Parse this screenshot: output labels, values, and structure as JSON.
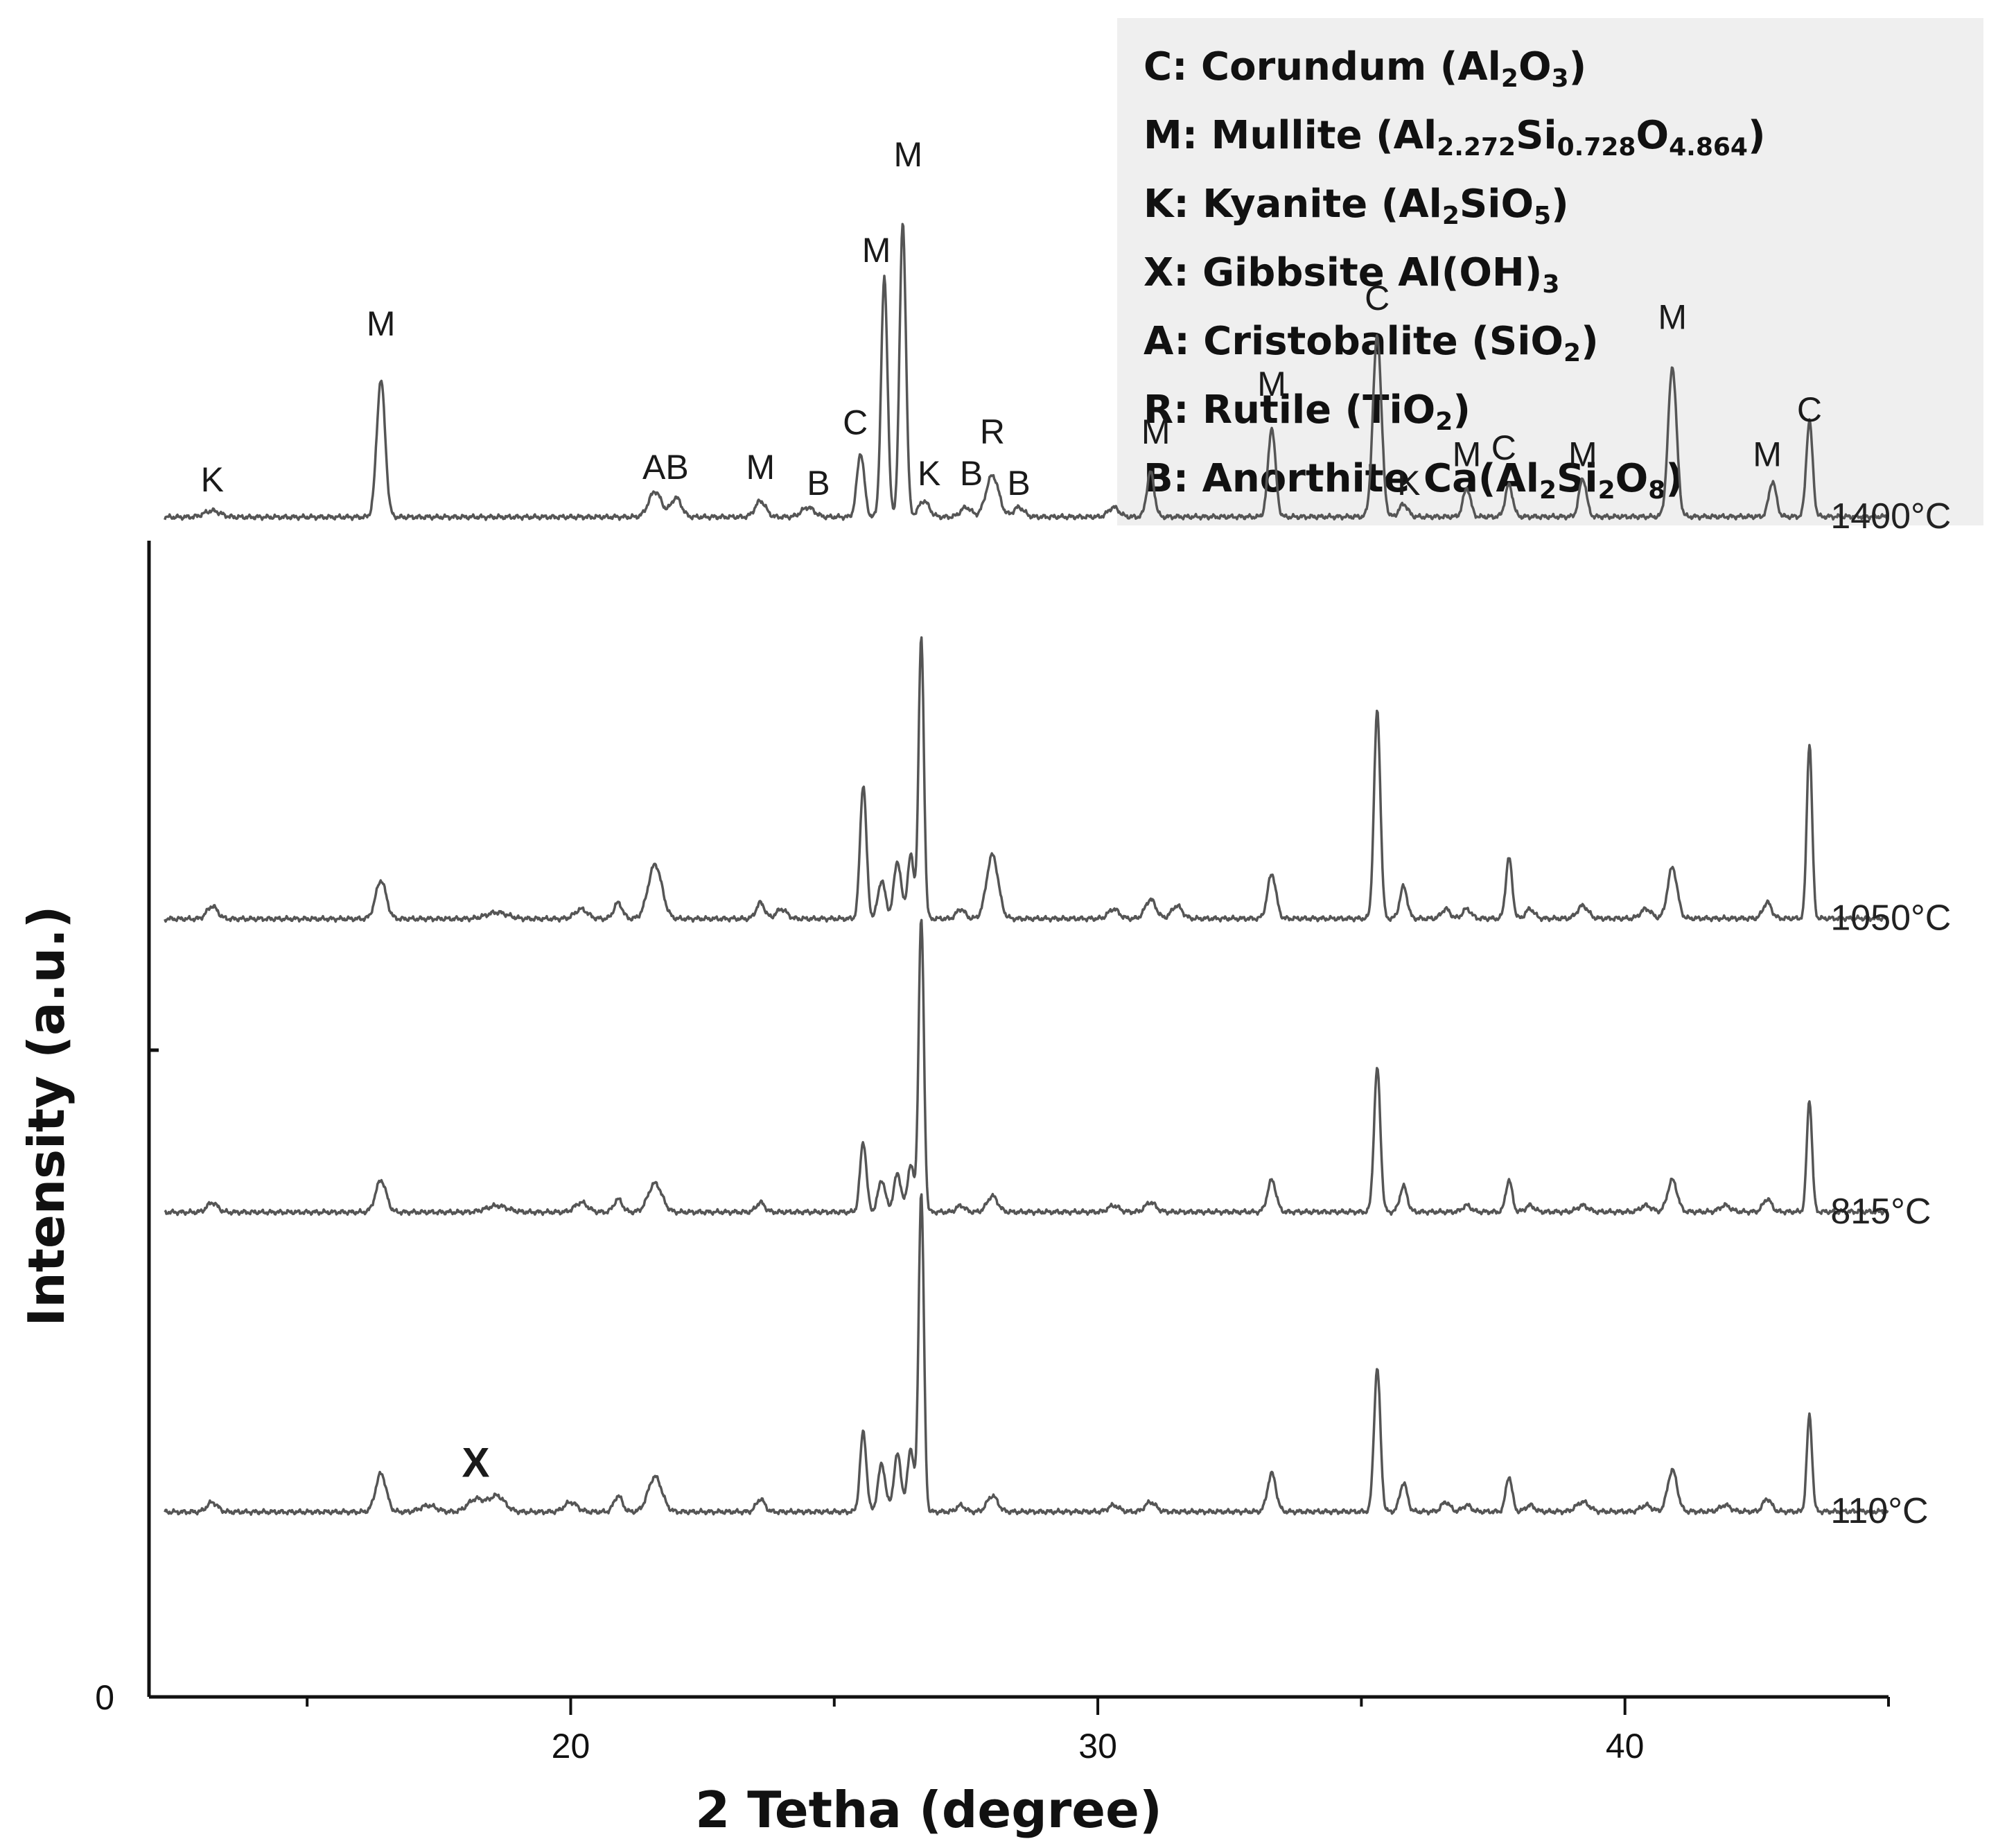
{
  "legend": {
    "items": [
      {
        "code": "C",
        "name": "Corundum",
        "formula": [
          [
            "(Al",
            ""
          ],
          [
            "2",
            "sub"
          ],
          [
            "O",
            ""
          ],
          [
            "3",
            "sub"
          ],
          [
            ")",
            ""
          ]
        ]
      },
      {
        "code": "M",
        "name": "Mullite",
        "formula": [
          [
            "(Al",
            ""
          ],
          [
            "2.272",
            "sub"
          ],
          [
            "Si",
            ""
          ],
          [
            "0.728",
            "sub"
          ],
          [
            "O",
            ""
          ],
          [
            "4.864",
            "sub"
          ],
          [
            ")",
            ""
          ]
        ]
      },
      {
        "code": "K",
        "name": "Kyanite",
        "formula": [
          [
            "(Al",
            ""
          ],
          [
            "2",
            "sub"
          ],
          [
            "SiO",
            ""
          ],
          [
            "5",
            "sub"
          ],
          [
            ")",
            ""
          ]
        ]
      },
      {
        "code": "X",
        "name": "Gibbsite",
        "formula": [
          [
            "Al(OH)",
            ""
          ],
          [
            "3",
            "sub"
          ]
        ]
      },
      {
        "code": "A",
        "name": "Cristobalite",
        "formula": [
          [
            "(SiO",
            ""
          ],
          [
            "2",
            "sub"
          ],
          [
            ")",
            ""
          ]
        ]
      },
      {
        "code": "R",
        "name": "Rutile",
        "formula": [
          [
            "(TiO",
            ""
          ],
          [
            "2",
            "sub"
          ],
          [
            ")",
            ""
          ]
        ]
      },
      {
        "code": "B",
        "name": "Anorthite",
        "formula": [
          [
            "Ca(Al",
            ""
          ],
          [
            "2",
            "sub"
          ],
          [
            "Si",
            ""
          ],
          [
            "2",
            "sub"
          ],
          [
            "O",
            ""
          ],
          [
            "8",
            "sub"
          ],
          [
            ")",
            ""
          ]
        ]
      }
    ]
  },
  "chart_data": {
    "type": "line",
    "xlabel": "2 Tetha (degree)",
    "ylabel": "Intensity (a.u.)",
    "xlim": [
      12,
      45
    ],
    "x_ticks": [
      20,
      30,
      40
    ],
    "y_tick_labels": [
      "0"
    ],
    "grid": false,
    "series": [
      {
        "name": "1400°C",
        "baseline": 3.7,
        "peaks": [
          [
            13.2,
            0.02,
            0.15
          ],
          [
            16.4,
            0.43,
            0.08
          ],
          [
            21.6,
            0.08,
            0.12
          ],
          [
            22.0,
            0.06,
            0.1
          ],
          [
            23.6,
            0.05,
            0.1
          ],
          [
            24.5,
            0.03,
            0.12
          ],
          [
            25.5,
            0.2,
            0.07
          ],
          [
            25.95,
            0.75,
            0.06
          ],
          [
            26.3,
            0.92,
            0.06
          ],
          [
            26.7,
            0.05,
            0.1
          ],
          [
            27.5,
            0.03,
            0.1
          ],
          [
            28.0,
            0.13,
            0.12
          ],
          [
            28.5,
            0.03,
            0.1
          ],
          [
            30.3,
            0.03,
            0.1
          ],
          [
            31.0,
            0.14,
            0.07
          ],
          [
            33.3,
            0.28,
            0.07
          ],
          [
            35.3,
            0.57,
            0.08
          ],
          [
            35.8,
            0.04,
            0.08
          ],
          [
            37.0,
            0.09,
            0.07
          ],
          [
            37.8,
            0.1,
            0.07
          ],
          [
            39.2,
            0.12,
            0.07
          ],
          [
            40.9,
            0.47,
            0.08
          ],
          [
            42.8,
            0.11,
            0.07
          ],
          [
            43.5,
            0.3,
            0.06
          ]
        ],
        "labels": [
          {
            "text": "K",
            "x": 13.2,
            "y": 3.78
          },
          {
            "text": "M",
            "x": 16.4,
            "y": 4.27
          },
          {
            "text": "AB",
            "x": 21.8,
            "y": 3.82
          },
          {
            "text": "M",
            "x": 23.6,
            "y": 3.82
          },
          {
            "text": "B",
            "x": 24.7,
            "y": 3.77
          },
          {
            "text": "C",
            "x": 25.4,
            "y": 3.96
          },
          {
            "text": "M",
            "x": 25.8,
            "y": 4.5
          },
          {
            "text": "M",
            "x": 26.4,
            "y": 4.8
          },
          {
            "text": "K",
            "x": 26.8,
            "y": 3.8
          },
          {
            "text": "B",
            "x": 27.6,
            "y": 3.8
          },
          {
            "text": "R",
            "x": 28.0,
            "y": 3.93
          },
          {
            "text": "B",
            "x": 28.5,
            "y": 3.77
          },
          {
            "text": "M",
            "x": 31.1,
            "y": 3.93
          },
          {
            "text": "M",
            "x": 33.3,
            "y": 4.08
          },
          {
            "text": "C",
            "x": 35.3,
            "y": 4.35
          },
          {
            "text": "K",
            "x": 35.9,
            "y": 3.77
          },
          {
            "text": "M",
            "x": 37.0,
            "y": 3.86
          },
          {
            "text": "C",
            "x": 37.7,
            "y": 3.88
          },
          {
            "text": "M",
            "x": 39.2,
            "y": 3.86
          },
          {
            "text": "M",
            "x": 40.9,
            "y": 4.29
          },
          {
            "text": "M",
            "x": 42.7,
            "y": 3.86
          },
          {
            "text": "C",
            "x": 43.5,
            "y": 4.0
          }
        ]
      },
      {
        "name": "1050°C",
        "baseline": 2.44,
        "peaks": [
          [
            13.2,
            0.04,
            0.1
          ],
          [
            16.4,
            0.12,
            0.1
          ],
          [
            18.6,
            0.02,
            0.2
          ],
          [
            20.2,
            0.03,
            0.12
          ],
          [
            20.9,
            0.05,
            0.08
          ],
          [
            21.6,
            0.17,
            0.13
          ],
          [
            23.6,
            0.05,
            0.08
          ],
          [
            24.0,
            0.03,
            0.1
          ],
          [
            25.55,
            0.42,
            0.06
          ],
          [
            25.9,
            0.12,
            0.07
          ],
          [
            26.2,
            0.18,
            0.07
          ],
          [
            26.45,
            0.2,
            0.06
          ],
          [
            26.65,
            0.88,
            0.05
          ],
          [
            27.4,
            0.03,
            0.08
          ],
          [
            28.0,
            0.2,
            0.11
          ],
          [
            30.3,
            0.03,
            0.1
          ],
          [
            31.0,
            0.06,
            0.1
          ],
          [
            31.5,
            0.04,
            0.1
          ],
          [
            33.3,
            0.14,
            0.08
          ],
          [
            35.3,
            0.65,
            0.06
          ],
          [
            35.8,
            0.1,
            0.07
          ],
          [
            36.6,
            0.03,
            0.08
          ],
          [
            37.0,
            0.03,
            0.08
          ],
          [
            37.8,
            0.19,
            0.06
          ],
          [
            38.2,
            0.03,
            0.08
          ],
          [
            39.2,
            0.04,
            0.1
          ],
          [
            40.4,
            0.03,
            0.1
          ],
          [
            40.9,
            0.16,
            0.09
          ],
          [
            42.7,
            0.05,
            0.08
          ],
          [
            43.5,
            0.55,
            0.05
          ]
        ],
        "labels": []
      },
      {
        "name": "815°C",
        "baseline": 1.52,
        "peaks": [
          [
            13.2,
            0.03,
            0.1
          ],
          [
            16.4,
            0.1,
            0.1
          ],
          [
            18.6,
            0.02,
            0.2
          ],
          [
            20.2,
            0.03,
            0.12
          ],
          [
            20.9,
            0.04,
            0.08
          ],
          [
            21.6,
            0.09,
            0.13
          ],
          [
            23.6,
            0.03,
            0.08
          ],
          [
            25.55,
            0.22,
            0.06
          ],
          [
            25.9,
            0.1,
            0.07
          ],
          [
            26.2,
            0.12,
            0.07
          ],
          [
            26.45,
            0.15,
            0.06
          ],
          [
            26.65,
            0.92,
            0.05
          ],
          [
            27.4,
            0.02,
            0.08
          ],
          [
            28.0,
            0.05,
            0.1
          ],
          [
            30.3,
            0.02,
            0.1
          ],
          [
            31.0,
            0.03,
            0.1
          ],
          [
            33.3,
            0.1,
            0.08
          ],
          [
            35.3,
            0.45,
            0.06
          ],
          [
            35.8,
            0.08,
            0.07
          ],
          [
            37.0,
            0.02,
            0.08
          ],
          [
            37.8,
            0.1,
            0.06
          ],
          [
            38.2,
            0.02,
            0.08
          ],
          [
            39.2,
            0.02,
            0.1
          ],
          [
            40.4,
            0.02,
            0.1
          ],
          [
            40.9,
            0.1,
            0.09
          ],
          [
            41.9,
            0.02,
            0.1
          ],
          [
            42.7,
            0.04,
            0.08
          ],
          [
            43.5,
            0.35,
            0.05
          ]
        ],
        "labels": []
      },
      {
        "name": "110°C",
        "baseline": 0.58,
        "peaks": [
          [
            13.2,
            0.03,
            0.1
          ],
          [
            16.4,
            0.12,
            0.1
          ],
          [
            17.3,
            0.02,
            0.15
          ],
          [
            18.2,
            0.04,
            0.15
          ],
          [
            18.6,
            0.05,
            0.15
          ],
          [
            20.0,
            0.03,
            0.12
          ],
          [
            20.9,
            0.05,
            0.08
          ],
          [
            21.6,
            0.11,
            0.13
          ],
          [
            23.6,
            0.04,
            0.08
          ],
          [
            25.55,
            0.25,
            0.06
          ],
          [
            25.9,
            0.15,
            0.07
          ],
          [
            26.2,
            0.18,
            0.07
          ],
          [
            26.45,
            0.2,
            0.06
          ],
          [
            26.65,
            1.0,
            0.05
          ],
          [
            27.4,
            0.02,
            0.08
          ],
          [
            28.0,
            0.05,
            0.1
          ],
          [
            30.3,
            0.02,
            0.1
          ],
          [
            31.0,
            0.03,
            0.1
          ],
          [
            33.3,
            0.12,
            0.08
          ],
          [
            35.3,
            0.45,
            0.06
          ],
          [
            35.8,
            0.09,
            0.07
          ],
          [
            36.6,
            0.03,
            0.08
          ],
          [
            37.0,
            0.02,
            0.08
          ],
          [
            37.8,
            0.11,
            0.06
          ],
          [
            38.2,
            0.02,
            0.08
          ],
          [
            39.2,
            0.03,
            0.12
          ],
          [
            40.4,
            0.02,
            0.1
          ],
          [
            40.9,
            0.13,
            0.09
          ],
          [
            41.9,
            0.02,
            0.1
          ],
          [
            42.7,
            0.04,
            0.08
          ],
          [
            43.5,
            0.3,
            0.05
          ]
        ],
        "labels": [
          {
            "text": "X",
            "x": 18.2,
            "y": 0.69,
            "bold": true
          }
        ]
      }
    ]
  }
}
